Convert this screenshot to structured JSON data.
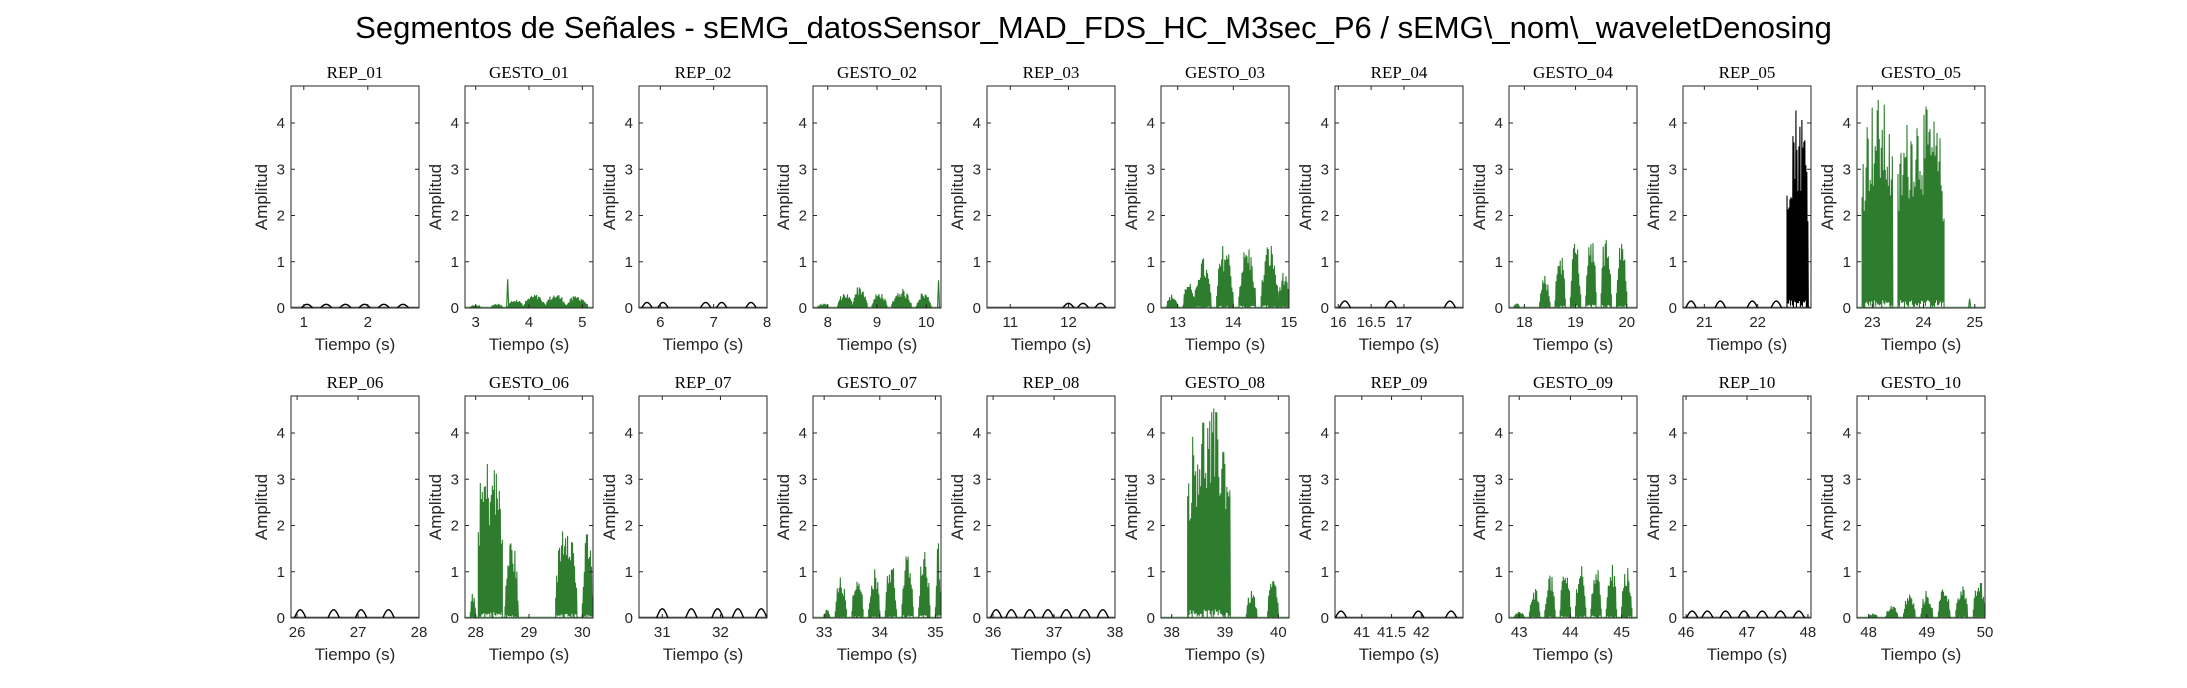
{
  "figure": {
    "title": "Segmentos de Señales - sEMG_datosSensor_MAD_FDS_HC_M3sec_P6 / sEMG\\_nom\\_waveletDenosing"
  },
  "colors": {
    "rep": "#000000",
    "gesture": "#2e7d2e",
    "axis": "#262626"
  },
  "chart_data": [
    {
      "type": "line",
      "title": "REP_01",
      "xlabel": "Tiempo (s)",
      "ylabel": "Amplitud",
      "xlim": [
        0.8,
        2.8
      ],
      "ylim": [
        0,
        4.8
      ],
      "xticks": [
        "1",
        "2"
      ],
      "yticks": [
        "0",
        "1",
        "2",
        "3",
        "4"
      ],
      "color": "rep",
      "mode": "humps",
      "humps": [
        1.05,
        1.35,
        1.65,
        1.95,
        2.25,
        2.55
      ],
      "hump_height": 0.08
    },
    {
      "type": "line",
      "title": "GESTO_01",
      "xlabel": "Tiempo (s)",
      "ylabel": "Amplitud",
      "xlim": [
        2.8,
        5.2
      ],
      "ylim": [
        0,
        4.8
      ],
      "xticks": [
        "3",
        "4",
        "5"
      ],
      "yticks": [
        "0",
        "1",
        "2",
        "3",
        "4"
      ],
      "color": "gesture",
      "mode": "burst",
      "segments": [
        [
          2.9,
          3.1,
          0.06
        ],
        [
          3.3,
          3.5,
          0.1
        ],
        [
          3.6,
          3.9,
          0.2
        ],
        [
          3.9,
          4.3,
          0.3
        ],
        [
          4.3,
          4.7,
          0.32
        ],
        [
          4.7,
          5.1,
          0.28
        ]
      ],
      "spikes": [
        [
          3.6,
          0.62
        ]
      ]
    },
    {
      "type": "line",
      "title": "REP_02",
      "xlabel": "Tiempo (s)",
      "ylabel": "Amplitud",
      "xlim": [
        5.6,
        8.0
      ],
      "ylim": [
        0,
        4.8
      ],
      "xticks": [
        "6",
        "7",
        "8"
      ],
      "yticks": [
        "0",
        "1",
        "2",
        "3",
        "4"
      ],
      "color": "rep",
      "mode": "humps",
      "humps": [
        5.75,
        6.05,
        6.85,
        7.15,
        7.7
      ],
      "hump_height": 0.12
    },
    {
      "type": "line",
      "title": "GESTO_02",
      "xlabel": "Tiempo (s)",
      "ylabel": "Amplitud",
      "xlim": [
        7.7,
        10.3
      ],
      "ylim": [
        0,
        4.8
      ],
      "xticks": [
        "8",
        "9",
        "10"
      ],
      "yticks": [
        "0",
        "1",
        "2",
        "3",
        "4"
      ],
      "color": "gesture",
      "mode": "burst",
      "segments": [
        [
          7.8,
          8.0,
          0.1
        ],
        [
          8.2,
          8.5,
          0.35
        ],
        [
          8.5,
          8.8,
          0.5
        ],
        [
          8.9,
          9.2,
          0.35
        ],
        [
          9.3,
          9.7,
          0.42
        ],
        [
          9.8,
          10.1,
          0.35
        ]
      ],
      "spikes": [
        [
          10.25,
          0.6
        ]
      ]
    },
    {
      "type": "line",
      "title": "REP_03",
      "xlabel": "Tiempo (s)",
      "ylabel": "Amplitud",
      "xlim": [
        10.6,
        12.8
      ],
      "ylim": [
        0,
        4.8
      ],
      "xticks": [
        "11",
        "12"
      ],
      "yticks": [
        "0",
        "1",
        "2",
        "3",
        "4"
      ],
      "color": "rep",
      "mode": "humps",
      "humps": [
        12.0,
        12.25,
        12.55
      ],
      "hump_height": 0.1
    },
    {
      "type": "line",
      "title": "GESTO_03",
      "xlabel": "Tiempo (s)",
      "ylabel": "Amplitud",
      "xlim": [
        12.7,
        15.0
      ],
      "ylim": [
        0,
        4.8
      ],
      "xticks": [
        "13",
        "14",
        "15"
      ],
      "yticks": [
        "0",
        "1",
        "2",
        "3",
        "4"
      ],
      "color": "gesture",
      "mode": "burst",
      "segments": [
        [
          12.8,
          13.0,
          0.3
        ],
        [
          13.1,
          13.3,
          0.6
        ],
        [
          13.3,
          13.6,
          1.1
        ],
        [
          13.7,
          14.0,
          1.45
        ],
        [
          14.1,
          14.4,
          1.4
        ],
        [
          14.5,
          14.8,
          1.45
        ],
        [
          14.8,
          15.0,
          0.8
        ]
      ]
    },
    {
      "type": "line",
      "title": "REP_04",
      "xlabel": "Tiempo (s)",
      "ylabel": "Amplitud",
      "xlim": [
        15.95,
        17.9
      ],
      "ylim": [
        0,
        4.8
      ],
      "xticks": [
        "16",
        "16.5",
        "17"
      ],
      "yticks": [
        "0",
        "1",
        "2",
        "3",
        "4"
      ],
      "color": "rep",
      "mode": "humps",
      "humps": [
        16.1,
        16.8,
        17.7
      ],
      "hump_height": 0.15
    },
    {
      "type": "line",
      "title": "GESTO_04",
      "xlabel": "Tiempo (s)",
      "ylabel": "Amplitud",
      "xlim": [
        17.7,
        20.2
      ],
      "ylim": [
        0,
        4.8
      ],
      "xticks": [
        "18",
        "19",
        "20"
      ],
      "yticks": [
        "0",
        "1",
        "2",
        "3",
        "4"
      ],
      "color": "gesture",
      "mode": "burst",
      "segments": [
        [
          17.8,
          17.9,
          0.12
        ],
        [
          18.3,
          18.5,
          0.7
        ],
        [
          18.6,
          18.8,
          1.3
        ],
        [
          18.9,
          19.1,
          1.5
        ],
        [
          19.2,
          19.4,
          1.8
        ],
        [
          19.5,
          19.7,
          1.85
        ],
        [
          19.8,
          20.0,
          1.7
        ]
      ]
    },
    {
      "type": "line",
      "title": "REP_05",
      "xlabel": "Tiempo (s)",
      "ylabel": "Amplitud",
      "xlim": [
        20.6,
        23.0
      ],
      "ylim": [
        0,
        4.8
      ],
      "xticks": [
        "21",
        "22"
      ],
      "yticks": [
        "0",
        "1",
        "2",
        "3",
        "4"
      ],
      "color": "rep",
      "mode": "humps",
      "humps": [
        20.75,
        21.3,
        21.9,
        22.35
      ],
      "hump_height": 0.15,
      "segments": [
        [
          22.55,
          22.95,
          4.5
        ]
      ]
    },
    {
      "type": "line",
      "title": "GESTO_05",
      "xlabel": "Tiempo (s)",
      "ylabel": "Amplitud",
      "xlim": [
        22.7,
        25.2
      ],
      "ylim": [
        0,
        4.8
      ],
      "xticks": [
        "23",
        "24",
        "25"
      ],
      "yticks": [
        "0",
        "1",
        "2",
        "3",
        "4"
      ],
      "color": "gesture",
      "mode": "burst",
      "segments": [
        [
          22.8,
          23.4,
          4.6
        ],
        [
          23.5,
          24.4,
          4.4
        ]
      ],
      "spikes": [
        [
          24.9,
          0.2
        ]
      ]
    },
    {
      "type": "line",
      "title": "REP_06",
      "xlabel": "Tiempo (s)",
      "ylabel": "Amplitud",
      "xlim": [
        25.9,
        28.0
      ],
      "ylim": [
        0,
        4.8
      ],
      "xticks": [
        "26",
        "27",
        "28"
      ],
      "yticks": [
        "0",
        "1",
        "2",
        "3",
        "4"
      ],
      "color": "rep",
      "mode": "humps",
      "humps": [
        26.05,
        26.6,
        27.05,
        27.5
      ],
      "hump_height": 0.18
    },
    {
      "type": "line",
      "title": "GESTO_06",
      "xlabel": "Tiempo (s)",
      "ylabel": "Amplitud",
      "xlim": [
        27.8,
        30.2
      ],
      "ylim": [
        0,
        4.8
      ],
      "xticks": [
        "28",
        "29",
        "30"
      ],
      "yticks": [
        "0",
        "1",
        "2",
        "3",
        "4"
      ],
      "color": "gesture",
      "mode": "burst",
      "segments": [
        [
          27.9,
          28.0,
          0.6
        ],
        [
          28.05,
          28.5,
          3.5
        ],
        [
          28.55,
          28.8,
          1.8
        ],
        [
          29.5,
          29.9,
          2.4
        ],
        [
          30.0,
          30.2,
          1.9
        ]
      ]
    },
    {
      "type": "line",
      "title": "REP_07",
      "xlabel": "Tiempo (s)",
      "ylabel": "Amplitud",
      "xlim": [
        30.6,
        32.8
      ],
      "ylim": [
        0,
        4.8
      ],
      "xticks": [
        "31",
        "32"
      ],
      "yticks": [
        "0",
        "1",
        "2",
        "3",
        "4"
      ],
      "color": "rep",
      "mode": "humps",
      "humps": [
        31.0,
        31.5,
        31.95,
        32.3,
        32.7
      ],
      "hump_height": 0.2
    },
    {
      "type": "line",
      "title": "GESTO_07",
      "xlabel": "Tiempo (s)",
      "ylabel": "Amplitud",
      "xlim": [
        32.8,
        35.1
      ],
      "ylim": [
        0,
        4.8
      ],
      "xticks": [
        "33",
        "34",
        "35"
      ],
      "yticks": [
        "0",
        "1",
        "2",
        "3",
        "4"
      ],
      "color": "gesture",
      "mode": "burst",
      "segments": [
        [
          33.0,
          33.1,
          0.2
        ],
        [
          33.2,
          33.4,
          0.9
        ],
        [
          33.5,
          33.7,
          1.0
        ],
        [
          33.8,
          34.0,
          1.1
        ],
        [
          34.1,
          34.3,
          1.3
        ],
        [
          34.4,
          34.6,
          1.45
        ],
        [
          34.7,
          34.9,
          1.6
        ],
        [
          35.0,
          35.1,
          1.7
        ]
      ]
    },
    {
      "type": "line",
      "title": "REP_08",
      "xlabel": "Tiempo (s)",
      "ylabel": "Amplitud",
      "xlim": [
        35.9,
        38.0
      ],
      "ylim": [
        0,
        4.8
      ],
      "xticks": [
        "36",
        "37",
        "38"
      ],
      "yticks": [
        "0",
        "1",
        "2",
        "3",
        "4"
      ],
      "color": "rep",
      "mode": "humps",
      "humps": [
        36.05,
        36.3,
        36.6,
        36.9,
        37.2,
        37.5,
        37.8
      ],
      "hump_height": 0.18
    },
    {
      "type": "line",
      "title": "GESTO_08",
      "xlabel": "Tiempo (s)",
      "ylabel": "Amplitud",
      "xlim": [
        37.8,
        40.2
      ],
      "ylim": [
        0,
        4.8
      ],
      "xticks": [
        "38",
        "39",
        "40"
      ],
      "yticks": [
        "0",
        "1",
        "2",
        "3",
        "4"
      ],
      "color": "gesture",
      "mode": "burst",
      "segments": [
        [
          38.3,
          39.1,
          4.6
        ],
        [
          39.4,
          39.6,
          0.6
        ],
        [
          39.8,
          40.0,
          0.9
        ]
      ]
    },
    {
      "type": "line",
      "title": "REP_09",
      "xlabel": "Tiempo (s)",
      "ylabel": "Amplitud",
      "xlim": [
        40.55,
        42.7
      ],
      "ylim": [
        0,
        4.8
      ],
      "xticks": [
        "41",
        "41.5",
        "42"
      ],
      "yticks": [
        "0",
        "1",
        "2",
        "3",
        "4"
      ],
      "color": "rep",
      "mode": "humps",
      "humps": [
        40.65,
        41.95,
        42.5
      ],
      "hump_height": 0.15
    },
    {
      "type": "line",
      "title": "GESTO_09",
      "xlabel": "Tiempo (s)",
      "ylabel": "Amplitud",
      "xlim": [
        42.8,
        45.3
      ],
      "ylim": [
        0,
        4.8
      ],
      "xticks": [
        "43",
        "44",
        "45"
      ],
      "yticks": [
        "0",
        "1",
        "2",
        "3",
        "4"
      ],
      "color": "gesture",
      "mode": "burst",
      "segments": [
        [
          42.9,
          43.1,
          0.15
        ],
        [
          43.2,
          43.4,
          0.7
        ],
        [
          43.5,
          43.7,
          1.0
        ],
        [
          43.8,
          44.0,
          1.15
        ],
        [
          44.1,
          44.3,
          1.3
        ],
        [
          44.4,
          44.6,
          1.3
        ],
        [
          44.7,
          44.9,
          1.25
        ],
        [
          45.0,
          45.2,
          1.2
        ]
      ]
    },
    {
      "type": "line",
      "title": "REP_10",
      "xlabel": "Tiempo (s)",
      "ylabel": "Amplitud",
      "xlim": [
        45.95,
        48.05
      ],
      "ylim": [
        0,
        4.8
      ],
      "xticks": [
        "46",
        "47",
        "48"
      ],
      "yticks": [
        "0",
        "1",
        "2",
        "3",
        "4"
      ],
      "color": "rep",
      "mode": "humps",
      "humps": [
        46.1,
        46.35,
        46.65,
        46.95,
        47.25,
        47.55,
        47.85
      ],
      "hump_height": 0.15
    },
    {
      "type": "line",
      "title": "GESTO_10",
      "xlabel": "Tiempo (s)",
      "ylabel": "Amplitud",
      "xlim": [
        47.8,
        50.0
      ],
      "ylim": [
        0,
        4.8
      ],
      "xticks": [
        "48",
        "49",
        "50"
      ],
      "yticks": [
        "0",
        "1",
        "2",
        "3",
        "4"
      ],
      "color": "gesture",
      "mode": "burst",
      "segments": [
        [
          48.0,
          48.15,
          0.1
        ],
        [
          48.3,
          48.5,
          0.3
        ],
        [
          48.6,
          48.8,
          0.55
        ],
        [
          48.9,
          49.1,
          0.6
        ],
        [
          49.2,
          49.4,
          0.75
        ],
        [
          49.5,
          49.7,
          0.8
        ],
        [
          49.8,
          50.0,
          0.85
        ]
      ]
    }
  ]
}
